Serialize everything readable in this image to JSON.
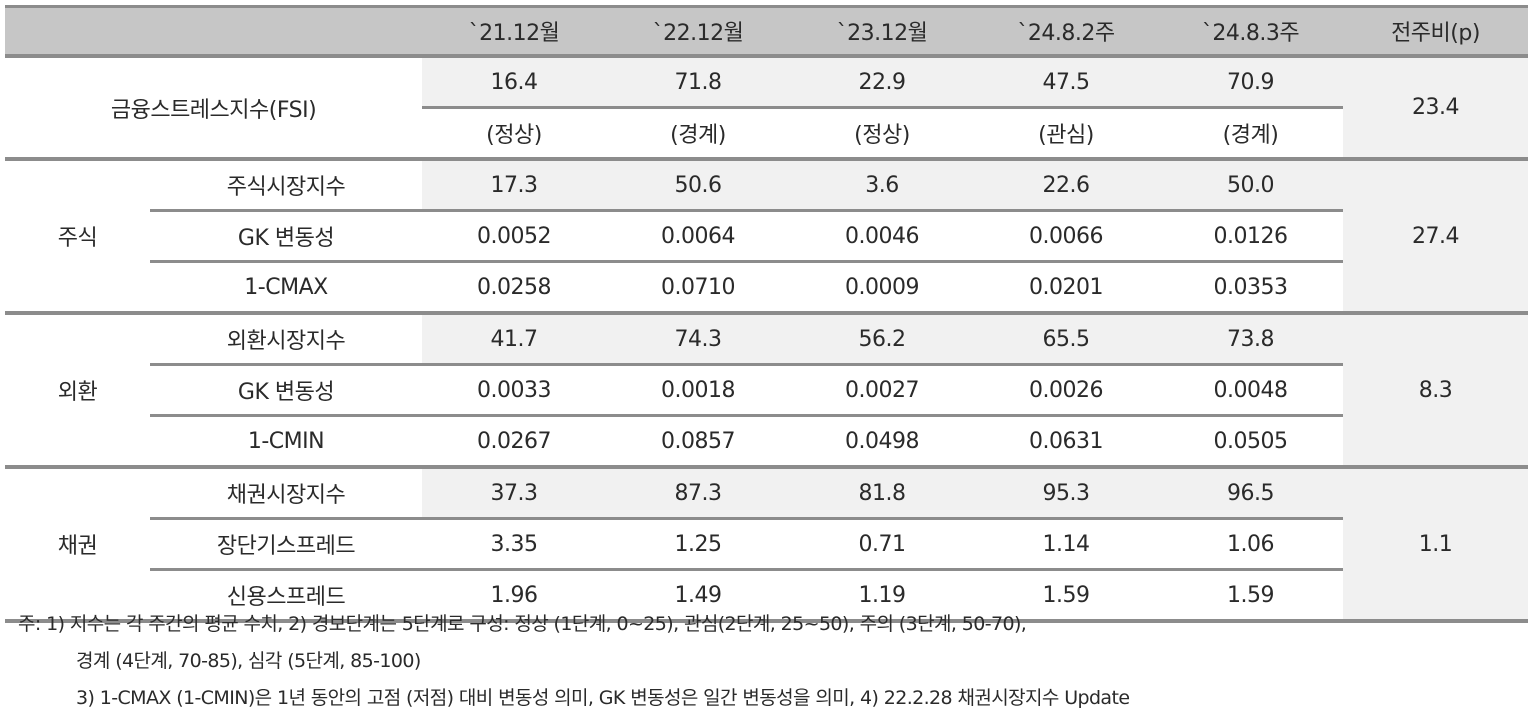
{
  "header": [
    "",
    "`21.12월",
    "`22.12월",
    "`23.12월",
    "`24.8.2주",
    "`24.8.3주",
    "전주비(p)"
  ],
  "fsi": {
    "label": "금융스트레스지수(FSI)",
    "values": [
      "16.4",
      "71.8",
      "22.9",
      "47.5",
      "70.9"
    ],
    "levels": [
      "(정상)",
      "(경계)",
      "(정상)",
      "(관심)",
      "(경계)"
    ],
    "change": "23.4"
  },
  "groups": [
    {
      "label": "주식",
      "change": "27.4",
      "rows": [
        {
          "label": "주식시장지수",
          "values": [
            "17.3",
            "50.6",
            "3.6",
            "22.6",
            "50.0"
          ]
        },
        {
          "label": "GK 변동성",
          "values": [
            "0.0052",
            "0.0064",
            "0.0046",
            "0.0066",
            "0.0126"
          ]
        },
        {
          "label": "1-CMAX",
          "values": [
            "0.0258",
            "0.0710",
            "0.0009",
            "0.0201",
            "0.0353"
          ]
        }
      ]
    },
    {
      "label": "외환",
      "change": "8.3",
      "rows": [
        {
          "label": "외환시장지수",
          "values": [
            "41.7",
            "74.3",
            "56.2",
            "65.5",
            "73.8"
          ]
        },
        {
          "label": "GK 변동성",
          "values": [
            "0.0033",
            "0.0018",
            "0.0027",
            "0.0026",
            "0.0048"
          ]
        },
        {
          "label": "1-CMIN",
          "values": [
            "0.0267",
            "0.0857",
            "0.0498",
            "0.0631",
            "0.0505"
          ]
        }
      ]
    },
    {
      "label": "채권",
      "change": "1.1",
      "rows": [
        {
          "label": "채권시장지수",
          "values": [
            "37.3",
            "87.3",
            "81.8",
            "95.3",
            "96.5"
          ]
        },
        {
          "label": "장단기스프레드",
          "values": [
            "3.35",
            "1.25",
            "0.71",
            "1.14",
            "1.06"
          ]
        },
        {
          "label": "신용스프레드",
          "values": [
            "1.96",
            "1.49",
            "1.19",
            "1.59",
            "1.59"
          ]
        }
      ]
    }
  ],
  "notes": [
    "주: 1) 지수는 각 주간의 평균 수치, 2) 경보단계는 5단계로 구성: 정상 (1단계, 0~25), 관심(2단계, 25~50), 주의 (3단계, 50-70),",
    "경계 (4단계, 70-85), 심각 (5단계, 85-100)",
    "3) 1-CMAX (1-CMIN)은 1년 동안의 고점 (저점) 대비 변동성 의미, GK 변동성은 일간 변동성을 의미, 4) 22.2.28 채권시장지수 Update"
  ]
}
